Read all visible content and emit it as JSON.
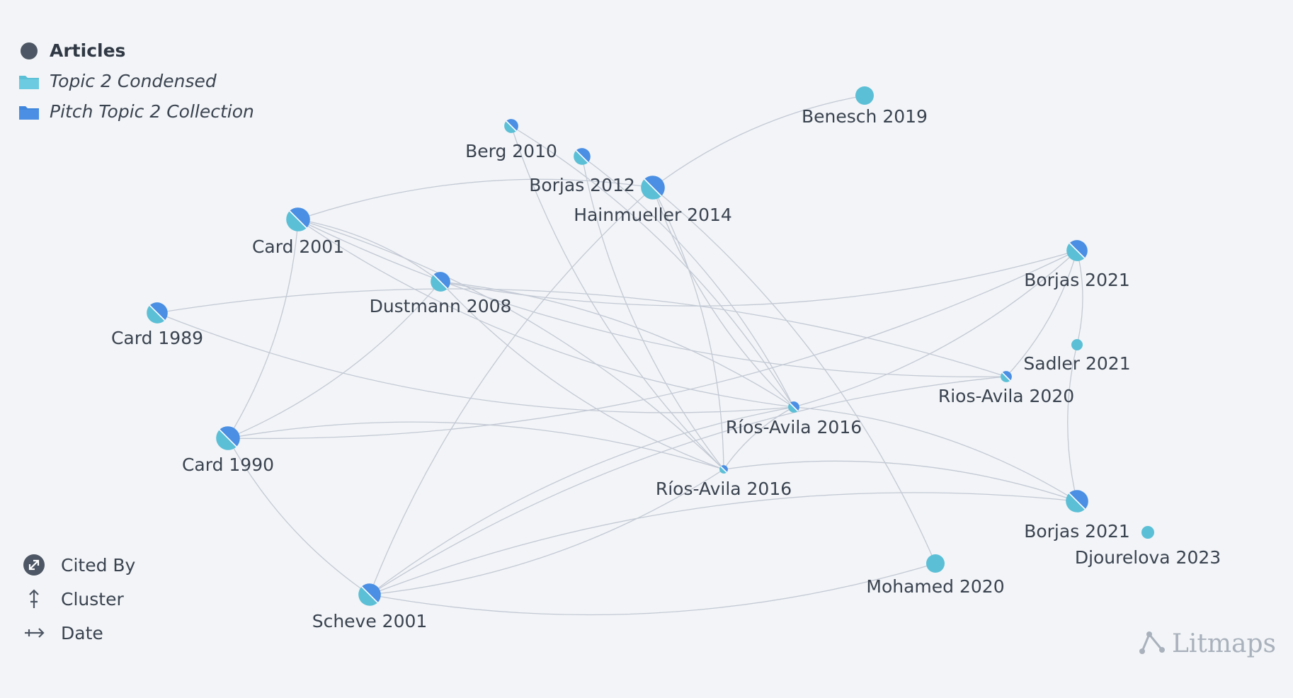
{
  "legend": {
    "articles_label": "Articles",
    "collection_1_label": "Topic 2 Condensed",
    "collection_2_label": "Pitch Topic 2 Collection",
    "articles_color": "#4d5664",
    "collection_1_color": "#5bbfd6",
    "collection_2_color": "#4a8fe3"
  },
  "controls": {
    "cited_by_label": "Cited By",
    "cluster_label": "Cluster",
    "date_label": "Date"
  },
  "brand": {
    "name": "Litmaps"
  },
  "graph": {
    "nodes": [
      {
        "id": "benesch2019",
        "label": "Benesch 2019",
        "style": "cyan"
      },
      {
        "id": "berg2010",
        "label": "Berg 2010",
        "style": "split"
      },
      {
        "id": "borjas2012",
        "label": "Borjas 2012",
        "style": "split"
      },
      {
        "id": "hainmueller2014",
        "label": "Hainmueller 2014",
        "style": "split"
      },
      {
        "id": "card2001",
        "label": "Card 2001",
        "style": "split"
      },
      {
        "id": "dustmann2008",
        "label": "Dustmann 2008",
        "style": "split"
      },
      {
        "id": "card1989",
        "label": "Card 1989",
        "style": "split"
      },
      {
        "id": "card1990",
        "label": "Card 1990",
        "style": "split"
      },
      {
        "id": "scheve2001",
        "label": "Scheve 2001",
        "style": "split"
      },
      {
        "id": "riosavila2016a",
        "label": "Ríos-Avila 2016",
        "style": "split"
      },
      {
        "id": "riosavila2016b",
        "label": "Ríos-Avila 2016",
        "style": "split"
      },
      {
        "id": "riosavila2020",
        "label": "Rios-Avila 2020",
        "style": "split"
      },
      {
        "id": "borjas2021a",
        "label": "Borjas 2021",
        "style": "split"
      },
      {
        "id": "sadler2021",
        "label": "Sadler 2021",
        "style": "cyan"
      },
      {
        "id": "borjas2021b",
        "label": "Borjas 2021",
        "style": "split"
      },
      {
        "id": "djourelova2023",
        "label": "Djourelova 2023",
        "style": "cyan"
      },
      {
        "id": "mohamed2020",
        "label": "Mohamed 2020",
        "style": "cyan"
      }
    ],
    "edges": [
      [
        "berg2010",
        "riosavila2016a"
      ],
      [
        "berg2010",
        "riosavila2016b"
      ],
      [
        "borjas2012",
        "riosavila2016a"
      ],
      [
        "borjas2012",
        "riosavila2016b"
      ],
      [
        "hainmueller2014",
        "benesch2019"
      ],
      [
        "hainmueller2014",
        "riosavila2016a"
      ],
      [
        "hainmueller2014",
        "riosavila2016b"
      ],
      [
        "hainmueller2014",
        "scheve2001"
      ],
      [
        "hainmueller2014",
        "mohamed2020"
      ],
      [
        "hainmueller2014",
        "card2001"
      ],
      [
        "card2001",
        "dustmann2008"
      ],
      [
        "card2001",
        "riosavila2016a"
      ],
      [
        "card2001",
        "riosavila2016b"
      ],
      [
        "card2001",
        "riosavila2020"
      ],
      [
        "card2001",
        "card1990"
      ],
      [
        "dustmann2008",
        "borjas2021a"
      ],
      [
        "dustmann2008",
        "riosavila2016a"
      ],
      [
        "dustmann2008",
        "riosavila2016b"
      ],
      [
        "dustmann2008",
        "card1990"
      ],
      [
        "card1989",
        "riosavila2016a"
      ],
      [
        "card1989",
        "riosavila2020"
      ],
      [
        "card1990",
        "borjas2021a"
      ],
      [
        "card1990",
        "riosavila2016b"
      ],
      [
        "card1990",
        "scheve2001"
      ],
      [
        "scheve2001",
        "riosavila2016a"
      ],
      [
        "scheve2001",
        "riosavila2016b"
      ],
      [
        "scheve2001",
        "borjas2021b"
      ],
      [
        "scheve2001",
        "mohamed2020"
      ],
      [
        "scheve2001",
        "riosavila2020"
      ],
      [
        "riosavila2016a",
        "borjas2021a"
      ],
      [
        "riosavila2016a",
        "borjas2021b"
      ],
      [
        "riosavila2016a",
        "riosavila2016b"
      ],
      [
        "riosavila2016b",
        "borjas2021b"
      ],
      [
        "riosavila2020",
        "borjas2021a"
      ],
      [
        "borjas2021a",
        "sadler2021"
      ],
      [
        "sadler2021",
        "borjas2021b"
      ]
    ]
  }
}
